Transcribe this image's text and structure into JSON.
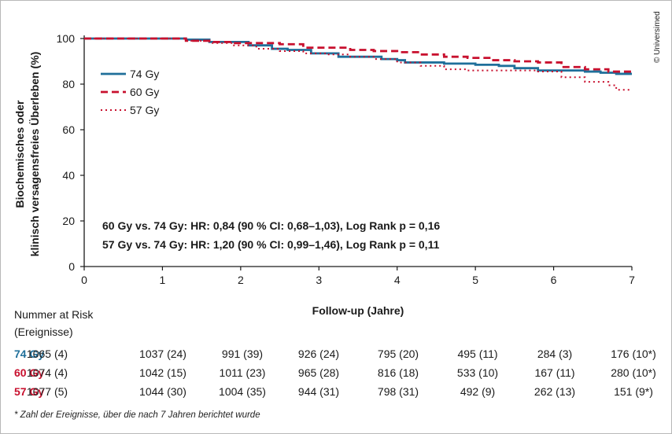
{
  "copyright": "© Universimed",
  "chart_data": {
    "type": "line",
    "xlabel": "Follow-up (Jahre)",
    "ylabel_line1": "Biochemisches oder",
    "ylabel_line2": "klinisch versagensfreies Überleben (%)",
    "xlim": [
      0,
      7
    ],
    "ylim": [
      0,
      100
    ],
    "xticks": [
      "0",
      "1",
      "2",
      "3",
      "4",
      "5",
      "6",
      "7"
    ],
    "yticks": [
      "0",
      "20",
      "40",
      "60",
      "80",
      "100"
    ],
    "grid": false,
    "legend_position": "top-left",
    "series": [
      {
        "name": "74 Gy",
        "style": "solid",
        "color": "#1f6f9a",
        "x": [
          0,
          0.5,
          1.0,
          1.3,
          1.6,
          1.9,
          2.1,
          2.4,
          2.6,
          2.9,
          3.1,
          3.25,
          3.5,
          3.8,
          4.0,
          4.1,
          4.3,
          4.6,
          5.0,
          5.3,
          5.5,
          5.8,
          6.1,
          6.4,
          6.6,
          6.8,
          7.0
        ],
        "y": [
          100,
          100,
          100,
          99.5,
          98.5,
          98.5,
          97,
          95.5,
          95,
          93.5,
          93.5,
          92,
          92,
          91,
          90.5,
          89.5,
          89.5,
          89,
          88.5,
          88,
          87,
          86,
          86,
          85.5,
          85,
          84.5,
          84.5
        ]
      },
      {
        "name": "60 Gy",
        "style": "dashed",
        "color": "#c8102e",
        "x": [
          0,
          0.5,
          1.0,
          1.3,
          1.6,
          1.9,
          2.2,
          2.5,
          2.8,
          3.1,
          3.4,
          3.7,
          4.0,
          4.3,
          4.6,
          4.9,
          5.2,
          5.5,
          5.8,
          6.1,
          6.4,
          6.7,
          7.0
        ],
        "y": [
          100,
          100,
          100,
          99,
          98.5,
          98,
          98,
          97.5,
          96,
          96,
          95,
          94.5,
          94,
          93,
          92,
          91.5,
          90.5,
          90,
          89.5,
          87.5,
          86.5,
          85.5,
          85
        ]
      },
      {
        "name": "57 Gy",
        "style": "dotted",
        "color": "#c8102e",
        "x": [
          0,
          0.5,
          1.0,
          1.3,
          1.6,
          1.9,
          2.2,
          2.5,
          2.8,
          3.1,
          3.4,
          3.7,
          4.0,
          4.3,
          4.6,
          4.9,
          5.2,
          5.5,
          5.8,
          6.1,
          6.4,
          6.7,
          6.8,
          7.0
        ],
        "y": [
          100,
          100,
          100,
          99,
          98,
          97,
          95.5,
          94.5,
          93.5,
          93,
          92,
          91,
          89.5,
          88,
          86.5,
          86,
          86,
          86,
          85.5,
          83,
          81,
          79.5,
          77.5,
          77.5
        ]
      }
    ]
  },
  "stats": [
    "60 Gy vs. 74 Gy: HR: 0,84 (90 % CI: 0,68–1,03), Log Rank p = 0,16",
    "57 Gy vs. 74 Gy: HR: 1,20 (90 % CI: 0,99–1,46), Log Rank p = 0,11"
  ],
  "risk_table": {
    "title_line1": "Nummer at Risk",
    "title_line2": "(Ereignisse)",
    "rows": [
      {
        "label": "74 Gy",
        "color": "#1f6f9a",
        "values": [
          "1065 (4)",
          "1037 (24)",
          "991 (39)",
          "926 (24)",
          "795 (20)",
          "495 (11)",
          "284 (3)",
          "176 (10*)"
        ]
      },
      {
        "label": "60 Gy",
        "color": "#c8102e",
        "values": [
          "1074 (4)",
          "1042 (15)",
          "1011 (23)",
          "965 (28)",
          "816 (18)",
          "533 (10)",
          "167 (11)",
          "280 (10*)"
        ]
      },
      {
        "label": "57 Gy",
        "color": "#c8102e",
        "values": [
          "1077 (5)",
          "1044 (30)",
          "1004 (35)",
          "944 (31)",
          "798 (31)",
          "492 (9)",
          "262 (13)",
          "151 (9*)"
        ]
      }
    ]
  },
  "footnote": "* Zahl der Ereignisse, über die nach 7 Jahren berichtet wurde"
}
